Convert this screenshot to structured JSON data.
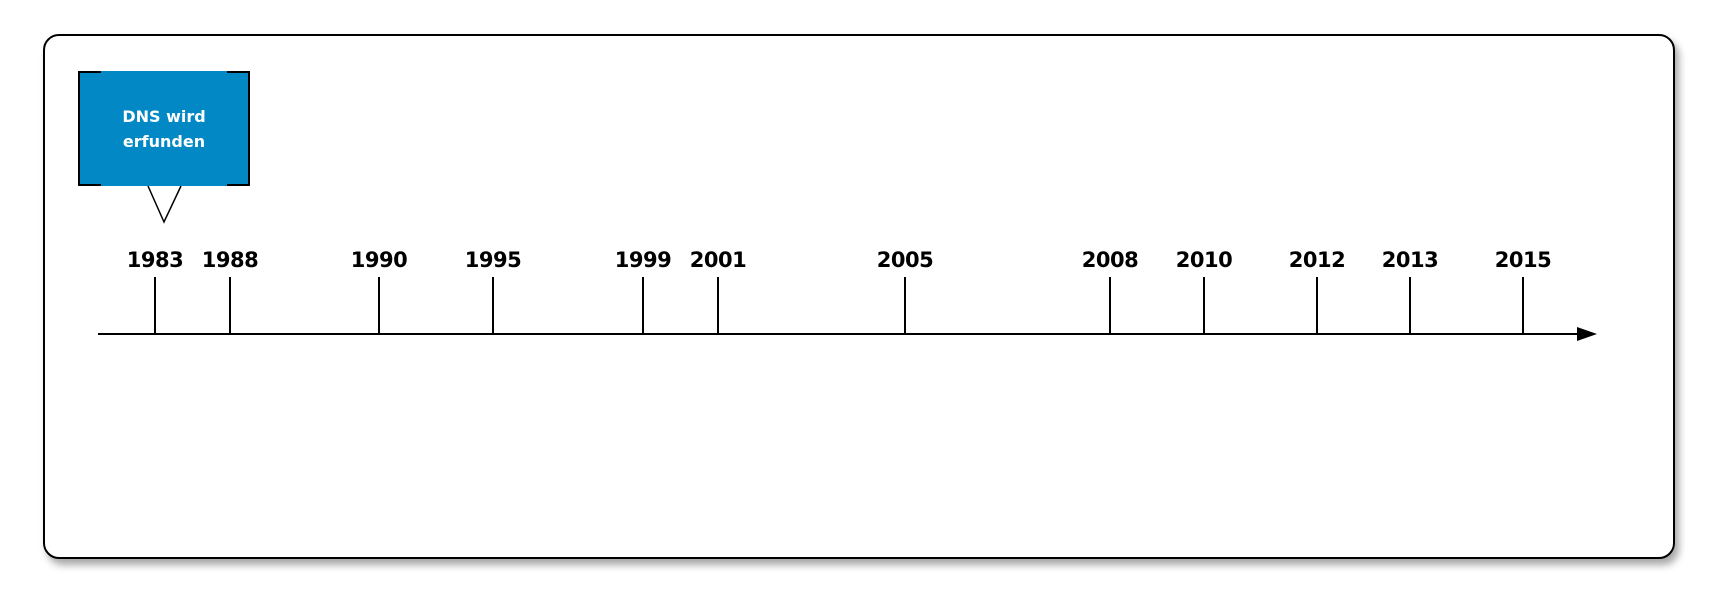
{
  "callout": {
    "text_line1": "DNS wird",
    "text_line2": "erfunden",
    "year": "1983",
    "color": "#0288c4"
  },
  "timeline": {
    "years": [
      "1983",
      "1988",
      "1990",
      "1995",
      "1999",
      "2001",
      "2005",
      "2008",
      "2010",
      "2012",
      "2013",
      "2015"
    ]
  }
}
